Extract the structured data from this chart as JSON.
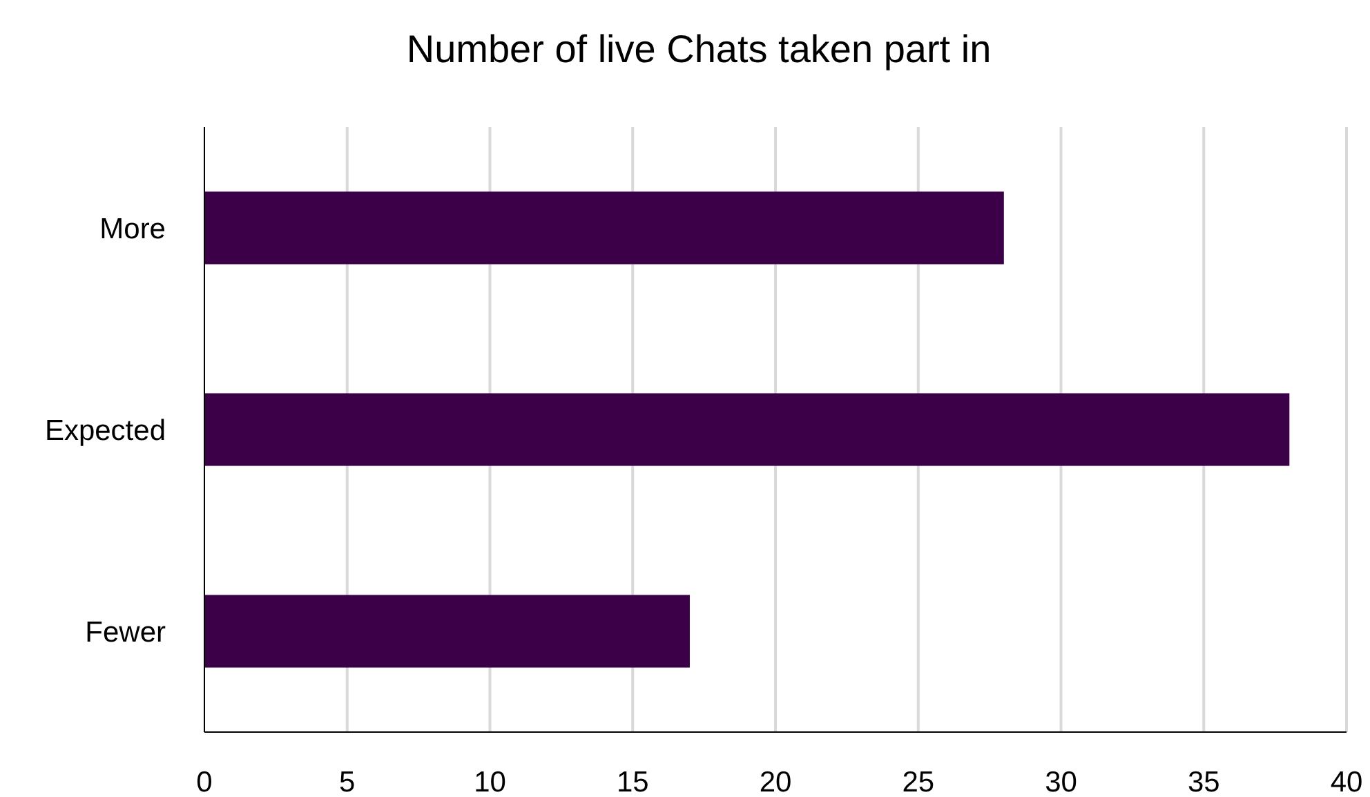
{
  "chart_data": {
    "type": "bar",
    "orientation": "horizontal",
    "title": "Number of live Chats taken part in",
    "categories": [
      "More",
      "Expected",
      "Fewer"
    ],
    "values": [
      28,
      38,
      17
    ],
    "color": "#3b0047",
    "xlim": [
      0,
      40
    ],
    "xticks": [
      0,
      5,
      10,
      15,
      20,
      25,
      30,
      35,
      40
    ],
    "grid": "x"
  }
}
